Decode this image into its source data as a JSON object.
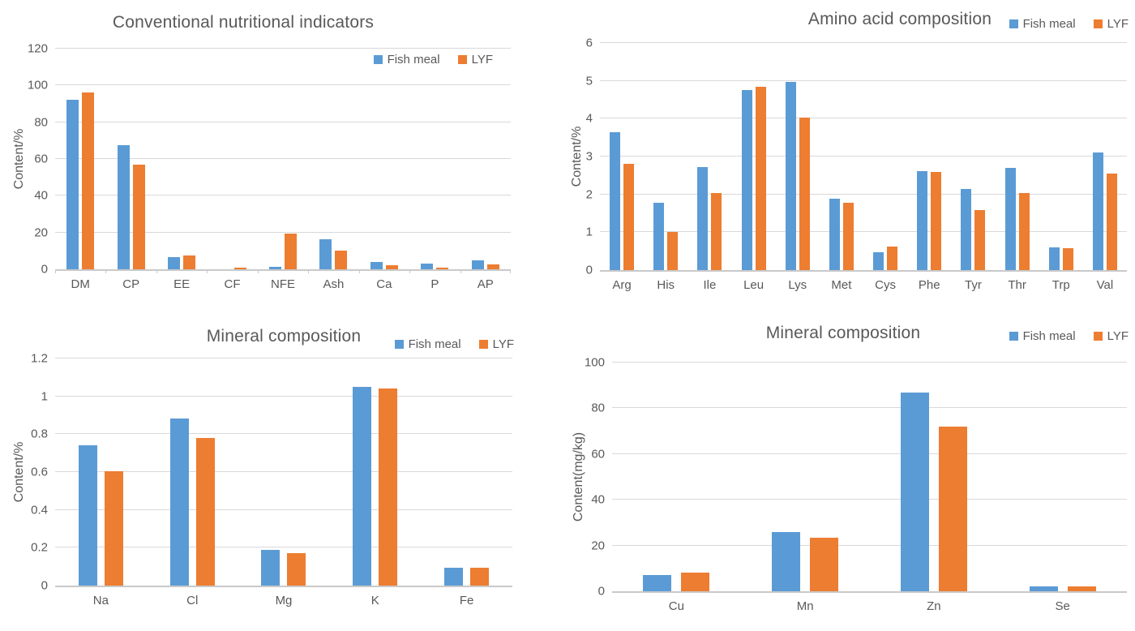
{
  "page": {
    "background": "#ffffff"
  },
  "colors": {
    "fish_meal": "#5B9BD5",
    "lyf": "#ED7D31",
    "text": "#595959",
    "gridline": "#d9d9d9",
    "axis": "#c9c9c9"
  },
  "chart_data": [
    {
      "type": "bar",
      "title": "Conventional nutritional indicators",
      "ylabel": "Content/%",
      "xlabel": "",
      "ylim": [
        0,
        120
      ],
      "yticks": [
        0,
        20,
        40,
        60,
        80,
        100,
        120
      ],
      "grid": true,
      "legend_position": "inside-top-right",
      "categories": [
        "DM",
        "CP",
        "EE",
        "CF",
        "NFE",
        "Ash",
        "Ca",
        "P",
        "AP"
      ],
      "series": [
        {
          "name": "Fish meal",
          "color": "#5B9BD5",
          "values": [
            92,
            67.5,
            6.5,
            0,
            1.5,
            16.5,
            4,
            3,
            5
          ]
        },
        {
          "name": "LYF",
          "color": "#ED7D31",
          "values": [
            96,
            57,
            7.5,
            1,
            19.5,
            10,
            2,
            1,
            2.5
          ]
        }
      ]
    },
    {
      "type": "bar",
      "title": "Amino acid composition",
      "ylabel": "Content/%",
      "xlabel": "",
      "ylim": [
        0,
        6
      ],
      "yticks": [
        0,
        1,
        2,
        3,
        4,
        5,
        6
      ],
      "grid": true,
      "legend_position": "top-right",
      "categories": [
        "Arg",
        "His",
        "Ile",
        "Leu",
        "Lys",
        "Met",
        "Cys",
        "Phe",
        "Tyr",
        "Thr",
        "Trp",
        "Val"
      ],
      "series": [
        {
          "name": "Fish meal",
          "color": "#5B9BD5",
          "values": [
            3.65,
            1.78,
            2.72,
            4.75,
            4.98,
            1.88,
            0.48,
            2.62,
            2.15,
            2.7,
            0.6,
            3.1
          ]
        },
        {
          "name": "LYF",
          "color": "#ED7D31",
          "values": [
            2.8,
            1.0,
            2.03,
            4.85,
            4.02,
            1.78,
            0.63,
            2.6,
            1.58,
            2.04,
            0.57,
            2.55
          ]
        }
      ]
    },
    {
      "type": "bar",
      "title": "Mineral composition",
      "ylabel": "Content/%",
      "xlabel": "",
      "ylim": [
        0,
        1.2
      ],
      "yticks": [
        0,
        0.2,
        0.4,
        0.6,
        0.8,
        1,
        1.2
      ],
      "grid": true,
      "legend_position": "top-right",
      "categories": [
        "Na",
        "Cl",
        "Mg",
        "K",
        "Fe"
      ],
      "series": [
        {
          "name": "Fish meal",
          "color": "#5B9BD5",
          "values": [
            0.74,
            0.885,
            0.19,
            1.05,
            0.095
          ]
        },
        {
          "name": "LYF",
          "color": "#ED7D31",
          "values": [
            0.605,
            0.78,
            0.17,
            1.04,
            0.095
          ]
        }
      ]
    },
    {
      "type": "bar",
      "title": "Mineral composition",
      "ylabel": "Content(mg/kg)",
      "xlabel": "",
      "ylim": [
        0,
        100
      ],
      "yticks": [
        0,
        20,
        40,
        60,
        80,
        100
      ],
      "grid": true,
      "legend_position": "top-right",
      "categories": [
        "Cu",
        "Mn",
        "Zn",
        "Se"
      ],
      "series": [
        {
          "name": "Fish meal",
          "color": "#5B9BD5",
          "values": [
            7,
            26,
            87,
            2
          ]
        },
        {
          "name": "LYF",
          "color": "#ED7D31",
          "values": [
            8,
            23.5,
            72,
            2
          ]
        }
      ]
    }
  ]
}
